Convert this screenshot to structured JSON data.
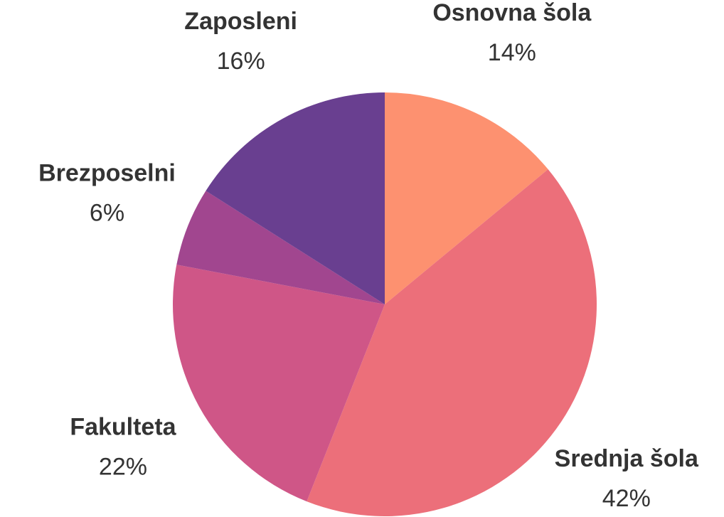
{
  "chart_data": {
    "type": "pie",
    "categories": [
      "Osnovna šola",
      "Srednja šola",
      "Fakulteta",
      "Brezposelni",
      "Zaposleni"
    ],
    "values": [
      14,
      42,
      22,
      6,
      16
    ],
    "value_labels": [
      "14%",
      "42%",
      "22%",
      "6%",
      "16%"
    ],
    "colors": [
      "#fd9170",
      "#ec6f7a",
      "#cf5687",
      "#a1468f",
      "#693f90"
    ]
  }
}
